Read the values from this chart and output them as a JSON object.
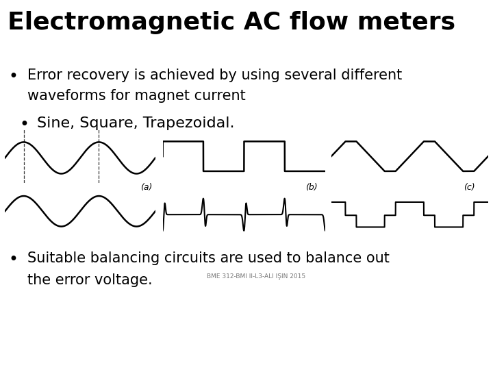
{
  "title": "Electromagnetic AC flow meters",
  "bullet1_line1": "Error recovery is achieved by using several different",
  "bullet1_line2": "waveforms for magnet current",
  "bullet2": "Sine, Square, Trapezoidal.",
  "bullet3_line1": "Suitable balancing circuits are used to balance out",
  "bullet3_line2": "the error voltage.",
  "footer": "BME 312-BMI II-L3-ALI IŞIN 2015",
  "bg_color": "#ffffff",
  "text_color": "#000000",
  "title_fontsize": 26,
  "bullet_fontsize": 15,
  "bullet2_fontsize": 16,
  "label_fontsize": 7.5
}
